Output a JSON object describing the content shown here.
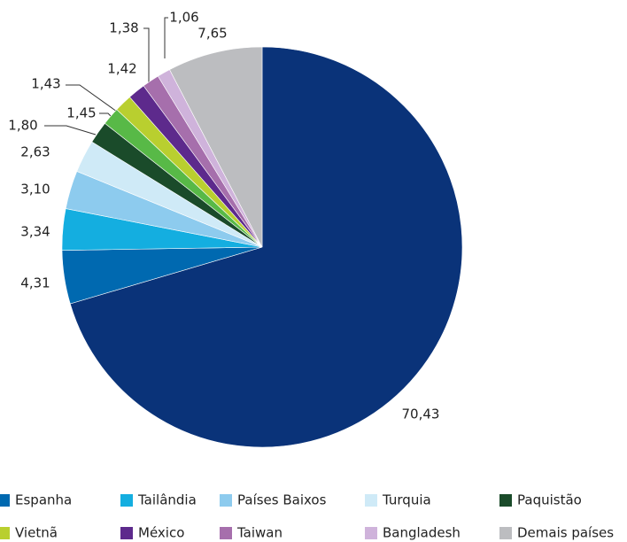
{
  "chart_data": {
    "type": "pie",
    "categories": [
      null,
      "Espanha",
      "Tailândia",
      "Países Baixos",
      "Turquia",
      "Paquistão",
      null,
      "Vietnã",
      "México",
      "Taiwan",
      "Bangladesh",
      "Demais países"
    ],
    "values": [
      70.43,
      4.31,
      3.34,
      3.1,
      2.63,
      1.8,
      1.45,
      1.43,
      1.42,
      1.38,
      1.06,
      7.65
    ],
    "value_labels": [
      "70,43",
      "4,31",
      "3,34",
      "3,10",
      "2,63",
      "1,80",
      "1,45",
      "1,43",
      "1,42",
      "1,38",
      "1,06",
      "7,65"
    ],
    "colors": [
      "#0a3379",
      "#0069b0",
      "#14aee0",
      "#8dcbee",
      "#cfeaf7",
      "#1a4b2a",
      "#58b947",
      "#b9cf2f",
      "#5d2a8c",
      "#a66fac",
      "#cfb3db",
      "#bcbdc0"
    ]
  }
}
